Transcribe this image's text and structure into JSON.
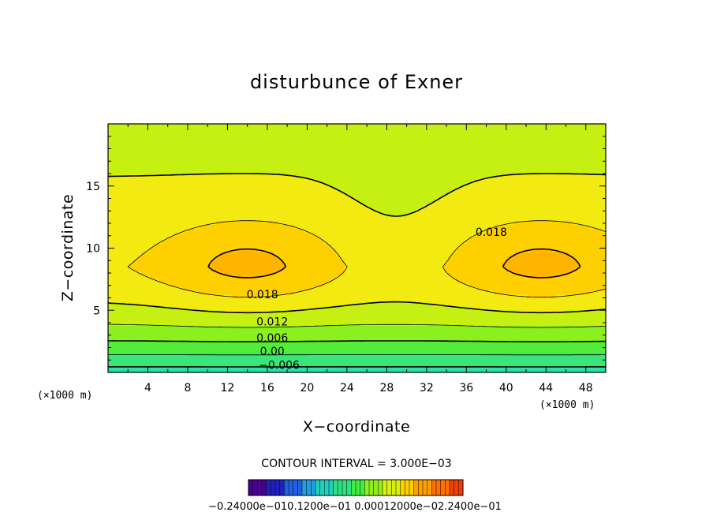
{
  "chart_data": {
    "type": "contour",
    "title": "disturbunce of Exner",
    "xlabel": "X−coordinate",
    "ylabel": "Z−coordinate",
    "x_unit_label": "(×1000 m)",
    "z_unit_label": "(×1000 m)",
    "xlim": [
      0,
      50
    ],
    "ylim": [
      0,
      20
    ],
    "x_ticks": [
      4,
      8,
      12,
      16,
      20,
      24,
      28,
      32,
      36,
      40,
      44,
      48
    ],
    "x_tick_labels": [
      "4",
      "8",
      "12",
      "16",
      "20",
      "24",
      "28",
      "32",
      "36",
      "40",
      "44",
      "48"
    ],
    "y_ticks": [
      5,
      10,
      15
    ],
    "y_tick_labels": [
      "5",
      "10",
      "15"
    ],
    "contour_interval_text": "CONTOUR INTERVAL = 3.000E−03",
    "contour_interval": 0.003,
    "contour_labels": [
      {
        "text": "0.018",
        "x": 15.5,
        "z": 6.3
      },
      {
        "text": "0.018",
        "x": 38.5,
        "z": 11.3
      },
      {
        "text": "0.012",
        "x": 16.5,
        "z": 4.1
      },
      {
        "text": "0.006",
        "x": 16.5,
        "z": 2.8
      },
      {
        "text": "0.00",
        "x": 16.5,
        "z": 1.7
      },
      {
        "text": "−0.006",
        "x": 17.2,
        "z": 0.6
      }
    ],
    "colorbar": {
      "min": -0.024,
      "max": 0.024,
      "labels_text": "−0.24000e−010.1200e−01 0.00012000e−02.2400e−01",
      "colors": [
        "#4a0090",
        "#2020c0",
        "#2060e0",
        "#20a0e0",
        "#20d0c0",
        "#30e080",
        "#40ee40",
        "#90ee20",
        "#d8ee10",
        "#ffd000",
        "#ffa000",
        "#ff7000",
        "#f04000"
      ]
    },
    "colors": {
      "field_levels": [
        "#25dfb0",
        "#3ae67a",
        "#52ec3a",
        "#8cef1e",
        "#c5f012",
        "#f2ea10",
        "#ffd000",
        "#ffb400",
        "#ff9b00",
        "#ff8000",
        "#fb6000",
        "#f04a00"
      ]
    }
  }
}
